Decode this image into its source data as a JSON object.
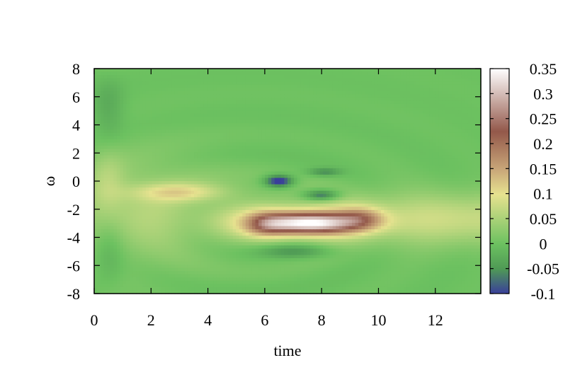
{
  "chart_data": {
    "type": "heatmap",
    "title": "",
    "xlabel": "time",
    "ylabel": "ω",
    "xlim": [
      0,
      13.6
    ],
    "ylim": [
      -8,
      8
    ],
    "x_ticks": [
      0,
      2,
      4,
      6,
      8,
      10,
      12
    ],
    "y_ticks": [
      -8,
      -6,
      -4,
      -2,
      0,
      2,
      4,
      6,
      8
    ],
    "colorbar": {
      "range": [
        -0.1,
        0.35
      ],
      "ticks": [
        "0.35",
        "0.3",
        "0.25",
        "0.2",
        "0.15",
        "0.1",
        "0.05",
        "0",
        "-0.05",
        "-0.1"
      ],
      "palette": [
        "#3a3f9a",
        "#4f9a55",
        "#6cc160",
        "#e6e28f",
        "#c9a779",
        "#93584a",
        "#ffffff"
      ]
    },
    "features": [
      {
        "time": 7.5,
        "omega": -3.0,
        "value": 0.35,
        "desc": "main positive peak"
      },
      {
        "time": 3.0,
        "omega": -0.8,
        "value": 0.14,
        "desc": "positive band"
      },
      {
        "time": 6.5,
        "omega": 0.0,
        "value": -0.1,
        "desc": "negative lobe"
      },
      {
        "time": 8.0,
        "omega": -1.0,
        "value": -0.08,
        "desc": "negative lobe"
      },
      {
        "time": 8.1,
        "omega": 0.6,
        "value": -0.05,
        "desc": "negative lobe"
      },
      {
        "time": 7.0,
        "omega": -5.0,
        "value": -0.06,
        "desc": "negative lobe"
      }
    ],
    "background_value": 0.0,
    "grid": false,
    "legend": "colorbar-right"
  }
}
